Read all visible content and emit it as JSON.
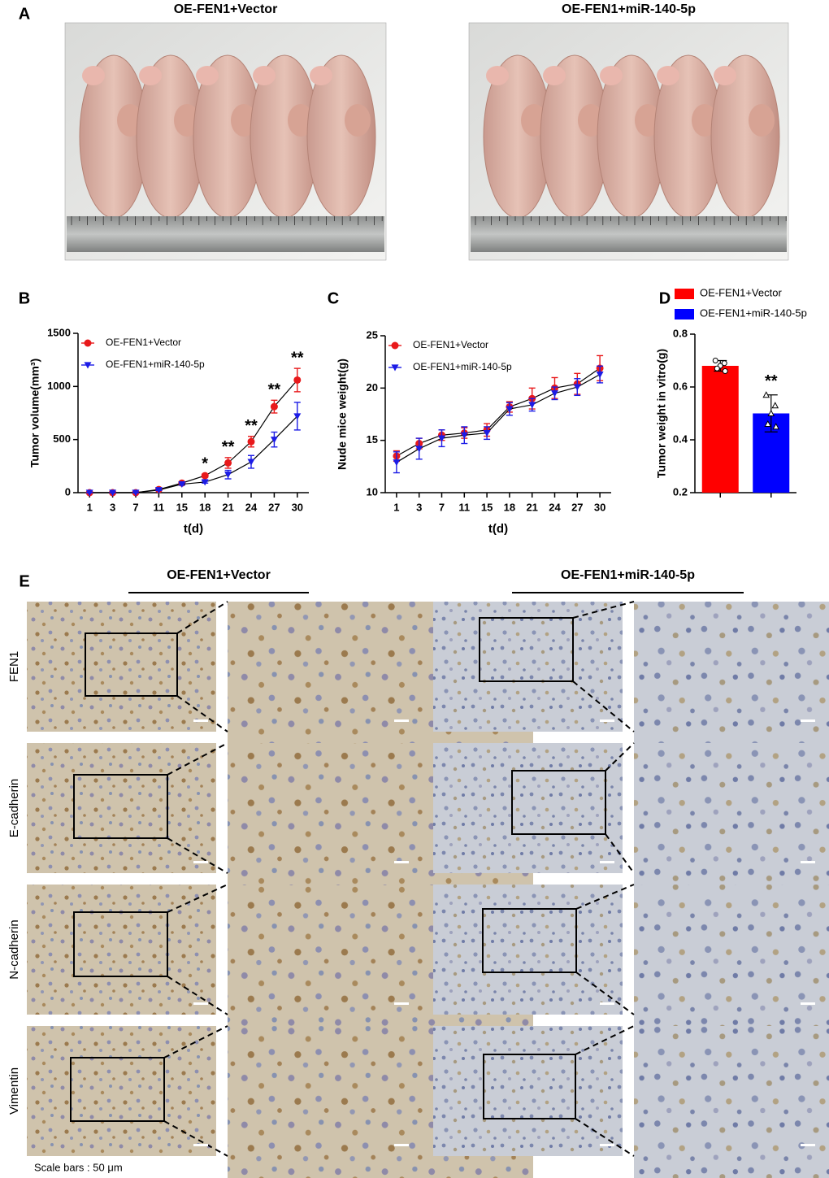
{
  "panel_labels": [
    "A",
    "B",
    "C",
    "D",
    "E"
  ],
  "photos": {
    "titles": [
      "OE-FEN1+Vector",
      "OE-FEN1+miR-140-5p"
    ]
  },
  "chart_data": [
    {
      "type": "line",
      "xlabel": "t(d)",
      "ylabel": "Tumor volume(mm³)",
      "categories": [
        "1",
        "3",
        "7",
        "11",
        "15",
        "18",
        "21",
        "24",
        "27",
        "30"
      ],
      "series": [
        {
          "name": "OE-FEN1+Vector",
          "color": "#e8191b",
          "marker": "circle",
          "values": [
            0,
            0,
            0,
            30,
            90,
            160,
            280,
            480,
            810,
            1060
          ],
          "errors": [
            0,
            0,
            0,
            5,
            10,
            15,
            50,
            50,
            60,
            110
          ]
        },
        {
          "name": "OE-FEN1+miR-140-5p",
          "color": "#1c1ce6",
          "marker": "triangle-down",
          "values": [
            0,
            0,
            0,
            25,
            80,
            100,
            170,
            290,
            500,
            720
          ],
          "errors": [
            0,
            0,
            0,
            5,
            10,
            10,
            40,
            60,
            70,
            130
          ]
        }
      ],
      "significance": [
        null,
        null,
        null,
        null,
        null,
        "*",
        "**",
        "**",
        "**",
        "**"
      ],
      "ylim": [
        0,
        1500
      ],
      "yticks": [
        0,
        500,
        1000,
        1500
      ],
      "legend": "upper left"
    },
    {
      "type": "line",
      "xlabel": "t(d)",
      "ylabel": "Nude mice weight(g)",
      "categories": [
        "1",
        "3",
        "7",
        "11",
        "15",
        "18",
        "21",
        "24",
        "27",
        "30"
      ],
      "series": [
        {
          "name": "OE-FEN1+Vector",
          "color": "#e8191b",
          "marker": "circle",
          "values": [
            13.5,
            14.7,
            15.5,
            15.7,
            16.0,
            18.2,
            19.0,
            20.0,
            20.4,
            21.9
          ],
          "errors": [
            0.5,
            0.5,
            0.5,
            0.5,
            0.6,
            0.5,
            1.0,
            1.0,
            1.0,
            1.2
          ]
        },
        {
          "name": "OE-FEN1+miR-140-5p",
          "color": "#1c1ce6",
          "marker": "triangle-down",
          "values": [
            12.9,
            14.2,
            15.2,
            15.5,
            15.7,
            18.0,
            18.4,
            19.5,
            20.1,
            21.3
          ],
          "errors": [
            1.0,
            1.0,
            0.8,
            0.8,
            0.6,
            0.6,
            0.6,
            0.6,
            0.8,
            0.8
          ]
        }
      ],
      "ylim": [
        10,
        25
      ],
      "yticks": [
        10,
        15,
        20,
        25
      ],
      "legend": "upper left"
    },
    {
      "type": "bar",
      "ylabel": "Tumor weight in vitro(g)",
      "series": [
        {
          "name": "OE-FEN1+Vector",
          "color": "#ff0000",
          "values": [
            0.68
          ],
          "errors": [
            0.02
          ],
          "points": [
            0.7,
            0.69,
            0.68,
            0.67,
            0.66
          ]
        },
        {
          "name": "OE-FEN1+miR-140-5p",
          "color": "#0000ff",
          "values": [
            0.5
          ],
          "errors": [
            0.07
          ],
          "points": [
            0.57,
            0.53,
            0.5,
            0.46,
            0.45
          ]
        }
      ],
      "significance": [
        null,
        "**"
      ],
      "ylim": [
        0.2,
        0.8
      ],
      "yticks": [
        0.2,
        0.4,
        0.6,
        0.8
      ],
      "legend": "top"
    }
  ],
  "ihc": {
    "groups": [
      "OE-FEN1+Vector",
      "OE-FEN1+miR-140-5p"
    ],
    "rows": [
      "FEN1",
      "E-cadherin",
      "N-cadherin",
      "Vimentin"
    ],
    "scale_note": "Scale bars : 50 μm"
  }
}
